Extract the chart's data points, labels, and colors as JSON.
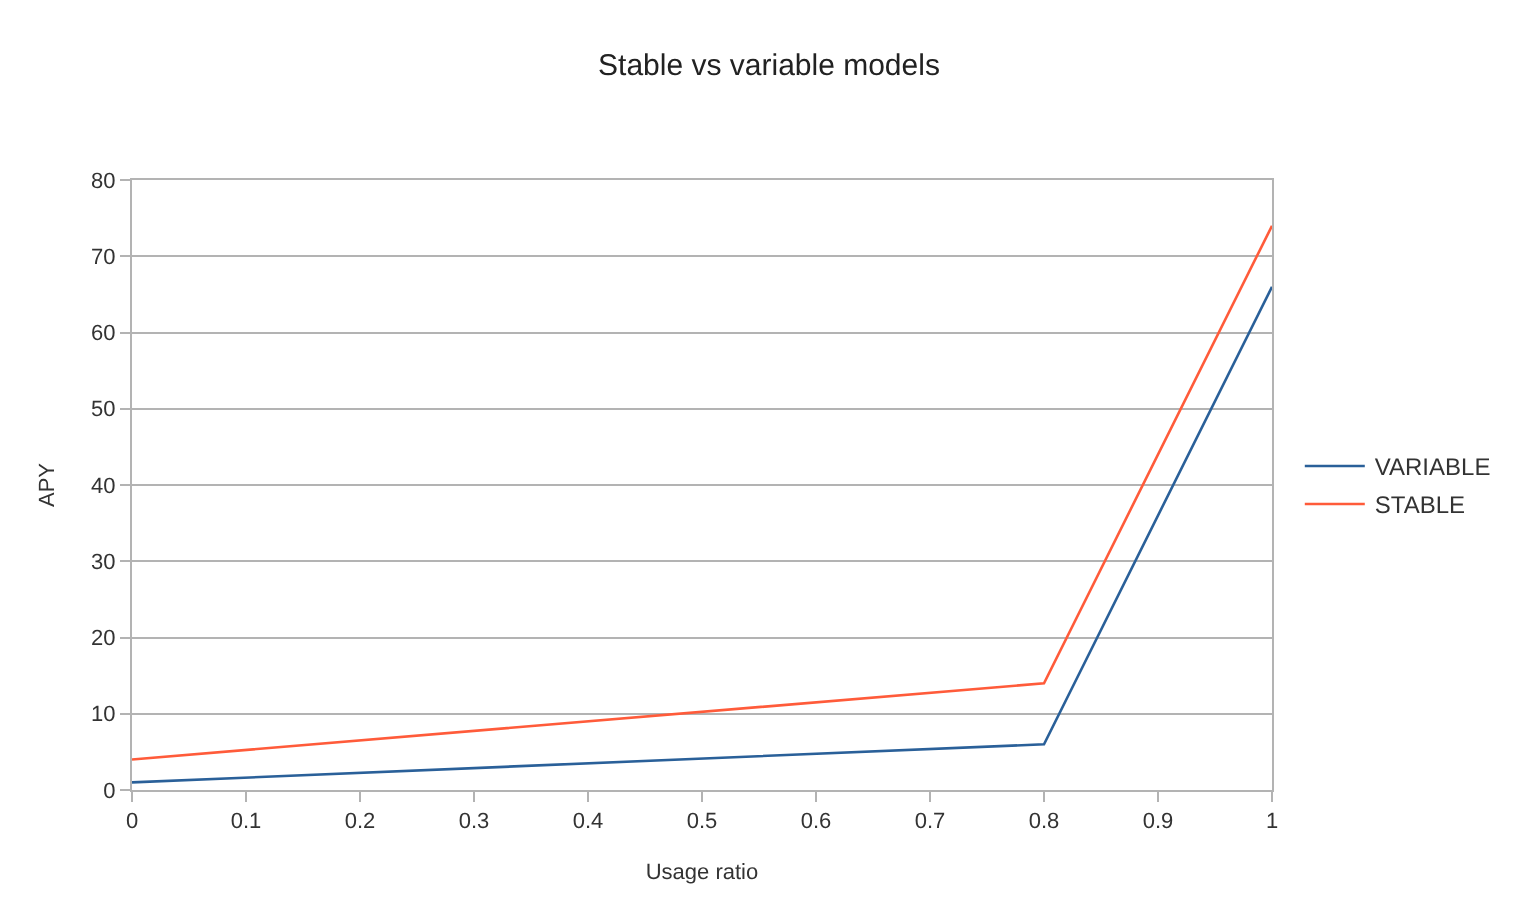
{
  "chart_data": {
    "type": "line",
    "title": "Stable vs variable models",
    "xlabel": "Usage ratio",
    "ylabel": "APY",
    "x": [
      0,
      0.8,
      1
    ],
    "series": [
      {
        "name": "VARIABLE",
        "color": "#2a6099",
        "values": [
          1,
          6,
          66
        ]
      },
      {
        "name": "STABLE",
        "color": "#ff5b3a",
        "values": [
          4,
          14,
          74
        ]
      }
    ],
    "xlim": [
      0,
      1
    ],
    "xticks": [
      0,
      0.1,
      0.2,
      0.3,
      0.4,
      0.5,
      0.6,
      0.7,
      0.8,
      0.9,
      1
    ],
    "ylim": [
      0,
      80
    ],
    "yticks": [
      0,
      10,
      20,
      30,
      40,
      50,
      60,
      70,
      80
    ],
    "grid": "y",
    "legend": "right",
    "marker": "none",
    "line_style": "solid"
  }
}
